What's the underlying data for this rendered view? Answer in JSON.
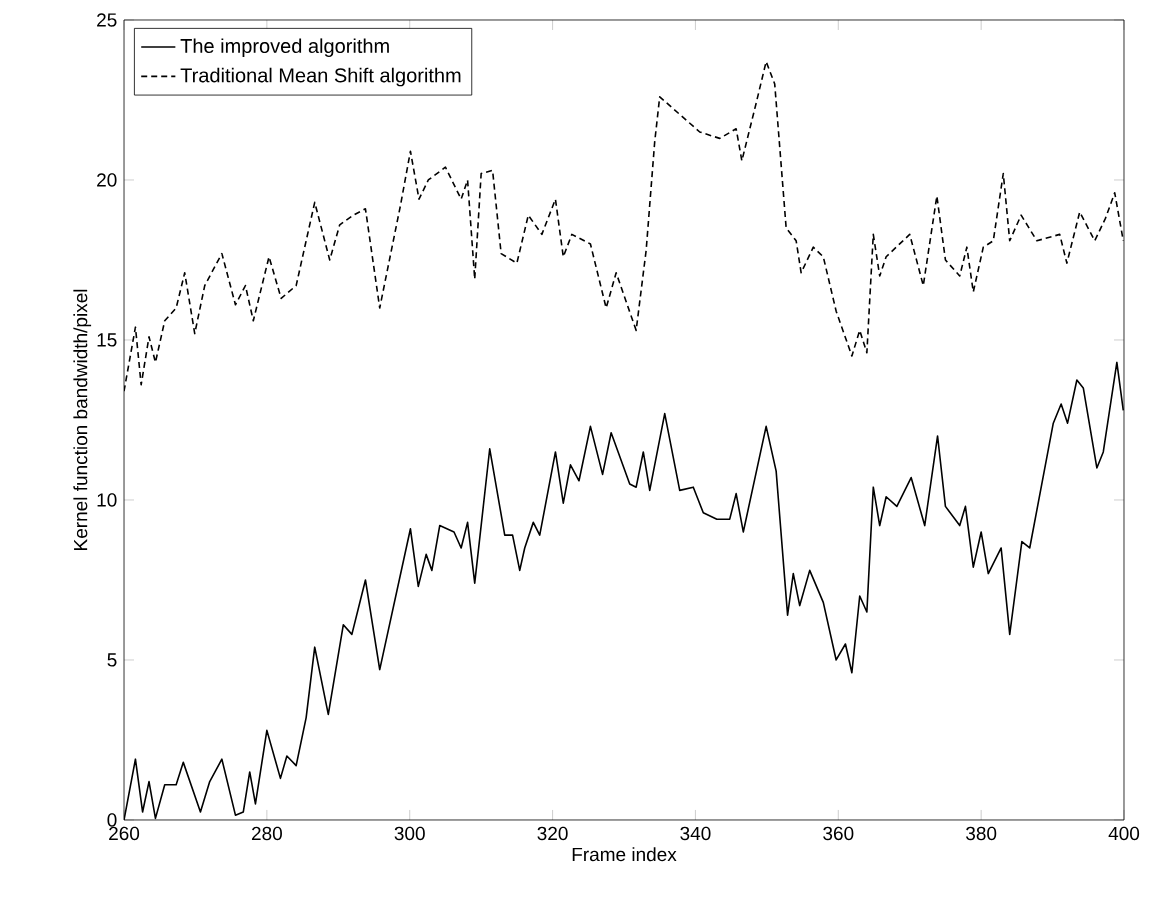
{
  "chart_data": {
    "type": "line",
    "xlabel": "Frame index",
    "ylabel": "Kernel function bandwidth/pixel",
    "xlim": [
      260,
      400
    ],
    "ylim": [
      0,
      25
    ],
    "xticks": [
      260,
      280,
      300,
      320,
      340,
      360,
      380,
      400
    ],
    "yticks": [
      0,
      5,
      10,
      15,
      20,
      25
    ],
    "grid": false,
    "legend": "top left",
    "marker": "none",
    "series": [
      {
        "name": "The improved algorithm",
        "color": "#000000",
        "line_style": "solid",
        "x": [
          260,
          261.6,
          262.6,
          263.5,
          264.4,
          265.7,
          267.3,
          268.3,
          270.7,
          272,
          273.7,
          275.6,
          276.7,
          277.6,
          278.4,
          280,
          281.9,
          282.8,
          284.1,
          285.5,
          286.7,
          288.6,
          290.7,
          291.9,
          293.8,
          295.8,
          300.1,
          301.2,
          302.3,
          303.1,
          304.2,
          306.2,
          307.2,
          308.1,
          309.1,
          311.2,
          313.3,
          314.4,
          315.4,
          316.1,
          317.3,
          318.2,
          320.4,
          321.5,
          322.5,
          323.7,
          325.3,
          327,
          328.2,
          330.8,
          331.7,
          332.7,
          333.6,
          335.7,
          337.8,
          339.7,
          341.1,
          343,
          344.8,
          345.7,
          346.7,
          349.9,
          351.3,
          352.9,
          353.7,
          354.6,
          356,
          357.9,
          359.7,
          361,
          361.9,
          363,
          364,
          364.9,
          365.8,
          366.7,
          368.2,
          370.2,
          372.1,
          373.9,
          375,
          377,
          377.8,
          378.9,
          380,
          381,
          382.8,
          384,
          385.7,
          386.8,
          390.1,
          391.2,
          392.1,
          393.4,
          394.3,
          396.2,
          397.1,
          399,
          399.9
        ],
        "values": [
          0,
          1.9,
          0.25,
          1.2,
          0.05,
          1.1,
          1.1,
          1.8,
          0.25,
          1.2,
          1.9,
          0.15,
          0.25,
          1.5,
          0.5,
          2.8,
          1.3,
          2.0,
          1.7,
          3.2,
          5.4,
          3.3,
          6.1,
          5.8,
          7.5,
          4.7,
          9.1,
          7.3,
          8.3,
          7.8,
          9.2,
          9.0,
          8.5,
          9.3,
          7.4,
          11.6,
          8.9,
          8.9,
          7.8,
          8.5,
          9.3,
          8.9,
          11.5,
          9.9,
          11.1,
          10.6,
          12.3,
          10.8,
          12.1,
          10.5,
          10.4,
          11.5,
          10.3,
          12.7,
          10.3,
          10.4,
          9.6,
          9.4,
          9.4,
          10.2,
          9.0,
          12.3,
          10.9,
          6.4,
          7.7,
          6.7,
          7.8,
          6.8,
          5.0,
          5.5,
          4.6,
          7.0,
          6.5,
          10.4,
          9.2,
          10.1,
          9.8,
          10.7,
          9.2,
          12.0,
          9.8,
          9.2,
          9.8,
          7.9,
          9.0,
          7.7,
          8.5,
          5.8,
          8.7,
          8.5,
          12.4,
          13.0,
          12.4,
          13.75,
          13.5,
          11.0,
          11.5,
          14.3,
          12.8
        ]
      },
      {
        "name": "Traditional Mean Shift algorithm",
        "color": "#000000",
        "line_style": "dashed",
        "x": [
          260,
          261.6,
          262.4,
          263.5,
          264.4,
          265.7,
          267.3,
          268.5,
          269.9,
          271.3,
          273.7,
          275.6,
          277,
          278.1,
          280.3,
          282,
          284.1,
          286.7,
          288.8,
          290.2,
          292.1,
          293.8,
          295.8,
          298.7,
          300.1,
          301.3,
          302.6,
          305,
          307.2,
          308.1,
          309.1,
          310,
          311.6,
          312.8,
          315,
          316.6,
          318.5,
          320.4,
          321.5,
          322.7,
          325.3,
          327.5,
          328.9,
          331.7,
          333.1,
          334.3,
          335,
          340.6,
          343.4,
          345.7,
          346.5,
          348.5,
          349.9,
          351.1,
          352.7,
          354.1,
          354.8,
          356.5,
          357.9,
          359.7,
          361.9,
          363,
          364,
          364.9,
          365.8,
          366.7,
          370,
          371.9,
          373.8,
          375,
          377,
          378,
          378.9,
          380.3,
          381.7,
          383.1,
          384,
          385.6,
          387.8,
          391,
          392,
          393.8,
          395.9,
          397.4,
          398.7,
          399.9
        ],
        "values": [
          13.4,
          15.4,
          13.6,
          15.1,
          14.3,
          15.6,
          16.0,
          17.1,
          15.2,
          16.7,
          17.7,
          16.1,
          16.7,
          15.6,
          17.6,
          16.3,
          16.7,
          19.3,
          17.5,
          18.6,
          18.9,
          19.1,
          16.0,
          19.2,
          20.9,
          19.4,
          20.0,
          20.4,
          19.4,
          20.0,
          16.9,
          20.2,
          20.3,
          17.7,
          17.4,
          18.9,
          18.3,
          19.4,
          17.6,
          18.3,
          18.0,
          16.0,
          17.1,
          15.3,
          17.8,
          21.2,
          22.6,
          21.5,
          21.3,
          21.6,
          20.6,
          22.4,
          23.7,
          23.0,
          18.5,
          18.1,
          17.1,
          17.9,
          17.6,
          15.9,
          14.5,
          15.3,
          14.6,
          18.3,
          17.0,
          17.6,
          18.3,
          16.7,
          19.5,
          17.5,
          17.0,
          17.9,
          16.5,
          17.9,
          18.1,
          20.2,
          18.1,
          18.9,
          18.1,
          18.3,
          17.4,
          19.0,
          18.1,
          18.8,
          19.6,
          18.1
        ]
      }
    ]
  }
}
